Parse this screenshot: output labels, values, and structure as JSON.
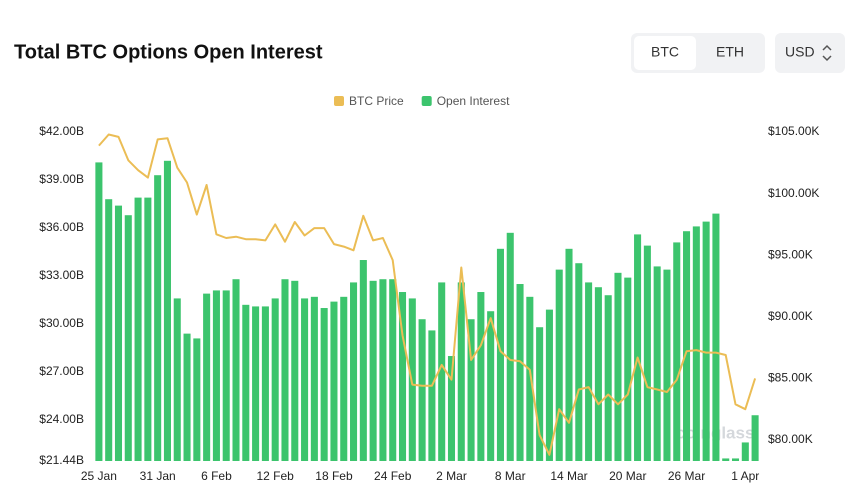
{
  "header": {
    "title": "Total BTC Options Open Interest",
    "toggle": [
      "BTC",
      "ETH"
    ],
    "currency": "USD"
  },
  "chart_data": {
    "type": "combo",
    "categories": [
      "25 Jan",
      null,
      null,
      null,
      null,
      null,
      "31 Jan",
      null,
      null,
      null,
      null,
      null,
      "6 Feb",
      null,
      null,
      null,
      null,
      null,
      "12 Feb",
      null,
      null,
      null,
      null,
      null,
      "18 Feb",
      null,
      null,
      null,
      null,
      null,
      "24 Feb",
      null,
      null,
      null,
      null,
      null,
      "2 Mar",
      null,
      null,
      null,
      null,
      null,
      "8 Mar",
      null,
      null,
      null,
      null,
      null,
      "14 Mar",
      null,
      null,
      null,
      null,
      null,
      "20 Mar",
      null,
      null,
      null,
      null,
      null,
      "26 Mar",
      null,
      null,
      null,
      null,
      null,
      "1 Apr",
      null
    ],
    "series": [
      {
        "name": "BTC Price",
        "type": "line",
        "axis": "y2",
        "color": "#ebbd55",
        "values": [
          103.9,
          104.8,
          104.6,
          102.7,
          101.9,
          101.3,
          104.4,
          104.5,
          102.1,
          100.9,
          98.3,
          100.7,
          96.7,
          96.4,
          96.5,
          96.3,
          96.3,
          96.2,
          97.5,
          96.1,
          97.7,
          96.6,
          97.2,
          97.2,
          95.9,
          95.7,
          95.4,
          98.2,
          96.2,
          96.4,
          94.6,
          88.5,
          84.5,
          84.4,
          84.4,
          86.1,
          84.9,
          94.0,
          86.5,
          87.7,
          89.9,
          87.2,
          86.5,
          86.4,
          85.7,
          80.4,
          78.8,
          82.5,
          81.4,
          84.1,
          84.3,
          82.9,
          83.7,
          82.9,
          83.7,
          86.7,
          84.3,
          84.1,
          83.9,
          84.9,
          87.2,
          87.3,
          87.1,
          87.1,
          86.9,
          82.9,
          82.5,
          85.0
        ]
      },
      {
        "name": "Open Interest",
        "type": "bar",
        "color": "#3cc46d",
        "values": [
          40.1,
          37.8,
          37.4,
          36.8,
          37.9,
          37.9,
          39.3,
          40.2,
          31.6,
          29.4,
          29.1,
          31.9,
          32.1,
          32.1,
          32.8,
          31.2,
          31.1,
          31.1,
          31.6,
          32.8,
          32.7,
          31.6,
          31.7,
          31.0,
          31.4,
          31.7,
          32.6,
          34.0,
          32.7,
          32.8,
          32.8,
          32.0,
          31.6,
          30.3,
          29.6,
          32.6,
          28.0,
          32.6,
          30.3,
          32.0,
          30.8,
          34.7,
          35.7,
          32.5,
          31.7,
          29.8,
          30.9,
          33.4,
          34.7,
          33.8,
          32.6,
          32.3,
          31.8,
          33.2,
          32.9,
          35.6,
          34.9,
          33.6,
          33.4,
          35.1,
          35.8,
          36.1,
          36.4,
          36.9,
          21.6,
          21.6,
          22.6,
          24.3
        ]
      }
    ],
    "ylim": [
      21.44,
      42
    ],
    "yticks": [
      {
        "value": 21.44,
        "label": "$21.44B"
      },
      {
        "value": 24,
        "label": "$24.00B"
      },
      {
        "value": 27,
        "label": "$27.00B"
      },
      {
        "value": 30,
        "label": "$30.00B"
      },
      {
        "value": 33,
        "label": "$33.00B"
      },
      {
        "value": 36,
        "label": "$36.00B"
      },
      {
        "value": 39,
        "label": "$39.00B"
      },
      {
        "value": 42,
        "label": "$42.00B"
      }
    ],
    "y2lim": [
      78.3,
      105
    ],
    "y2ticks": [
      {
        "value": 80,
        "label": "$80.00K"
      },
      {
        "value": 85,
        "label": "$85.00K"
      },
      {
        "value": 90,
        "label": "$90.00K"
      },
      {
        "value": 95,
        "label": "$95.00K"
      },
      {
        "value": 100,
        "label": "$100.00K"
      },
      {
        "value": 105,
        "label": "$105.00K"
      }
    ],
    "legend": "top",
    "watermark": "coinglass"
  }
}
